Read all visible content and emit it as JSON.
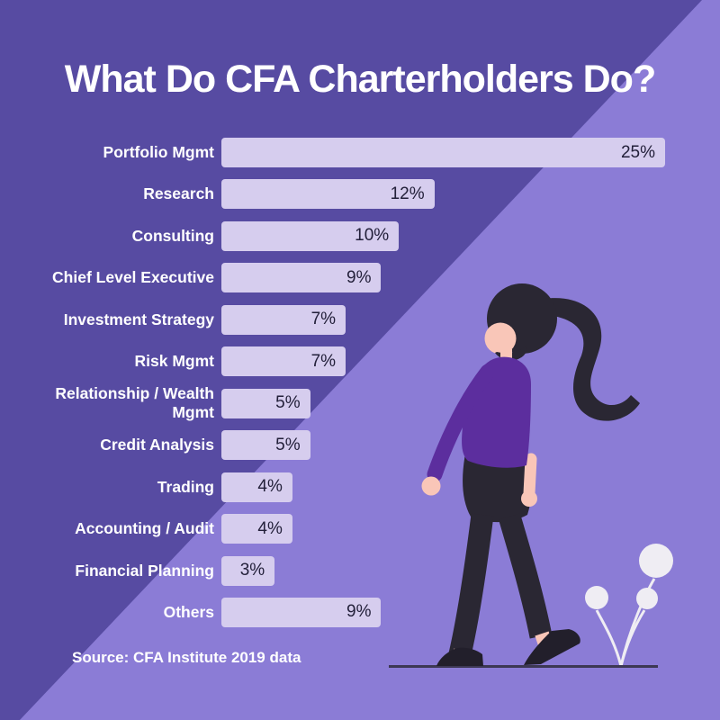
{
  "title": "What Do CFA Charterholders Do?",
  "source_note": "Source: CFA Institute 2019 data",
  "colors": {
    "background_dark": "#574BA2",
    "background_light": "#8B7CD6",
    "bar_fill": "#D6CDEE",
    "bar_value_text": "#23203A",
    "label_text": "#FFFFFF",
    "sweater": "#5C2E9E",
    "hair_and_pants": "#2A2733",
    "skin": "#F9C6B8",
    "shoes": "#221F2B",
    "ground_line": "#3C3853",
    "flowers": "#EFEDF3"
  },
  "chart_data": {
    "type": "bar",
    "orientation": "horizontal",
    "title": "What Do CFA Charterholders Do?",
    "unit": "%",
    "categories": [
      "Portfolio Mgmt",
      "Research",
      "Consulting",
      "Chief Level Executive",
      "Investment Strategy",
      "Risk Mgmt",
      "Relationship / Wealth Mgmt",
      "Credit Analysis",
      "Trading",
      "Accounting / Audit",
      "Financial Planning",
      "Others"
    ],
    "values": [
      25,
      12,
      10,
      9,
      7,
      7,
      5,
      5,
      4,
      4,
      3,
      9
    ],
    "value_labels": [
      "25%",
      "12%",
      "10%",
      "9%",
      "7%",
      "7%",
      "5%",
      "5%",
      "4%",
      "4%",
      "3%",
      "9%"
    ],
    "xlim": [
      0,
      25.5
    ],
    "grid": false,
    "legend": false,
    "annotation": "Source: CFA Institute 2019 data"
  }
}
